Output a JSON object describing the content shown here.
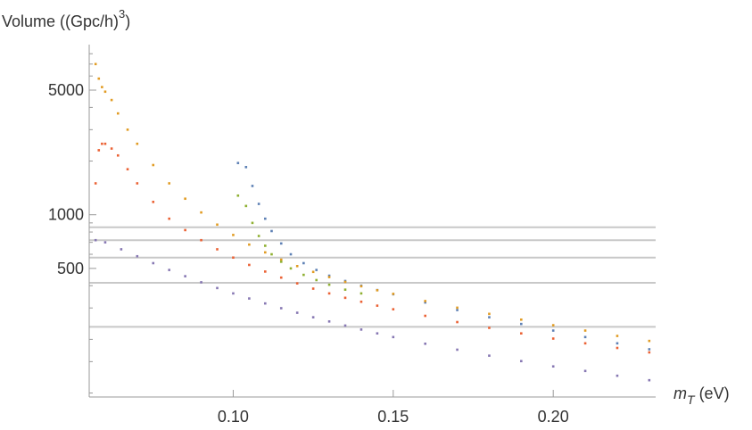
{
  "chart_data": {
    "type": "scatter",
    "title": "",
    "xlabel": {
      "symbol": "m",
      "subscript": "T",
      "unit": " (eV)"
    },
    "ylabel": {
      "text": "Volume ((Gpc/h)",
      "exponent": "3",
      "close": ")"
    },
    "xscale": "linear",
    "yscale": "log",
    "xlim": [
      0.055,
      0.232
    ],
    "ylim": [
      95,
      9000
    ],
    "x_ticks": [
      {
        "value": 0.1,
        "label": "0.10"
      },
      {
        "value": 0.15,
        "label": "0.15"
      },
      {
        "value": 0.2,
        "label": "0.20"
      }
    ],
    "y_ticks": [
      {
        "value": 500,
        "label": "500"
      },
      {
        "value": 1000,
        "label": "1000"
      },
      {
        "value": 5000,
        "label": "5000"
      }
    ],
    "y_minor_ticks": [
      100,
      150,
      200,
      300,
      400,
      600,
      700,
      800,
      900,
      2000,
      3000,
      4000,
      6000,
      7000,
      8000
    ],
    "reference_lines_y": [
      850,
      720,
      575,
      415,
      235
    ],
    "grid": false,
    "legend": "none",
    "series": [
      {
        "color": "#5e81b5",
        "x": [
          0.1015,
          0.104,
          0.106,
          0.108,
          0.11,
          0.112,
          0.115,
          0.118,
          0.122,
          0.126,
          0.13,
          0.135,
          0.14,
          0.145,
          0.15,
          0.16,
          0.17,
          0.18,
          0.19,
          0.2,
          0.21,
          0.22,
          0.23
        ],
        "y": [
          1950,
          1850,
          1450,
          1150,
          950,
          810,
          690,
          600,
          535,
          490,
          455,
          425,
          400,
          378,
          358,
          322,
          292,
          266,
          244,
          224,
          206,
          190,
          176
        ]
      },
      {
        "color": "#e19c24",
        "x": [
          0.057,
          0.058,
          0.059,
          0.06,
          0.062,
          0.064,
          0.067,
          0.07,
          0.075,
          0.08,
          0.085,
          0.09,
          0.095,
          0.1,
          0.105,
          0.11,
          0.115,
          0.12,
          0.125,
          0.13,
          0.135,
          0.14,
          0.145,
          0.15,
          0.16,
          0.17,
          0.18,
          0.19,
          0.2,
          0.21,
          0.22,
          0.23
        ],
        "y": [
          7000,
          5800,
          5200,
          4900,
          4400,
          3700,
          3000,
          2500,
          1900,
          1500,
          1230,
          1030,
          880,
          770,
          680,
          615,
          560,
          515,
          478,
          447,
          420,
          397,
          377,
          360,
          328,
          301,
          278,
          258,
          240,
          224,
          209,
          196
        ]
      },
      {
        "color": "#8fb032",
        "x": [
          0.1015,
          0.104,
          0.106,
          0.108,
          0.11,
          0.112,
          0.115,
          0.118,
          0.122,
          0.126,
          0.13,
          0.135,
          0.14
        ],
        "y": [
          1280,
          1120,
          900,
          760,
          670,
          600,
          545,
          500,
          460,
          430,
          405,
          380,
          362
        ]
      },
      {
        "color": "#eb6235",
        "x": [
          0.057,
          0.058,
          0.059,
          0.06,
          0.062,
          0.064,
          0.067,
          0.07,
          0.075,
          0.08,
          0.085,
          0.09,
          0.095,
          0.1,
          0.105,
          0.11,
          0.115,
          0.12,
          0.125,
          0.13,
          0.135,
          0.14,
          0.145,
          0.15,
          0.16,
          0.17,
          0.18,
          0.19,
          0.2,
          0.21,
          0.22,
          0.23
        ],
        "y": [
          1500,
          2300,
          2500,
          2500,
          2350,
          2150,
          1800,
          1500,
          1180,
          950,
          820,
          720,
          640,
          575,
          523,
          480,
          444,
          412,
          385,
          362,
          342,
          325,
          309,
          295,
          271,
          250,
          232,
          216,
          202,
          190,
          179,
          169
        ]
      },
      {
        "color": "#8778b3",
        "x": [
          0.057,
          0.06,
          0.065,
          0.07,
          0.075,
          0.08,
          0.085,
          0.09,
          0.095,
          0.1,
          0.105,
          0.11,
          0.115,
          0.12,
          0.125,
          0.13,
          0.135,
          0.14,
          0.145,
          0.15,
          0.16,
          0.17,
          0.18,
          0.19,
          0.2,
          0.21,
          0.22,
          0.23
        ],
        "y": [
          720,
          700,
          640,
          585,
          535,
          490,
          452,
          418,
          388,
          362,
          339,
          318,
          299,
          282,
          266,
          252,
          239,
          227,
          216,
          206,
          189,
          175,
          162,
          151,
          141,
          133,
          125,
          118
        ]
      }
    ]
  }
}
